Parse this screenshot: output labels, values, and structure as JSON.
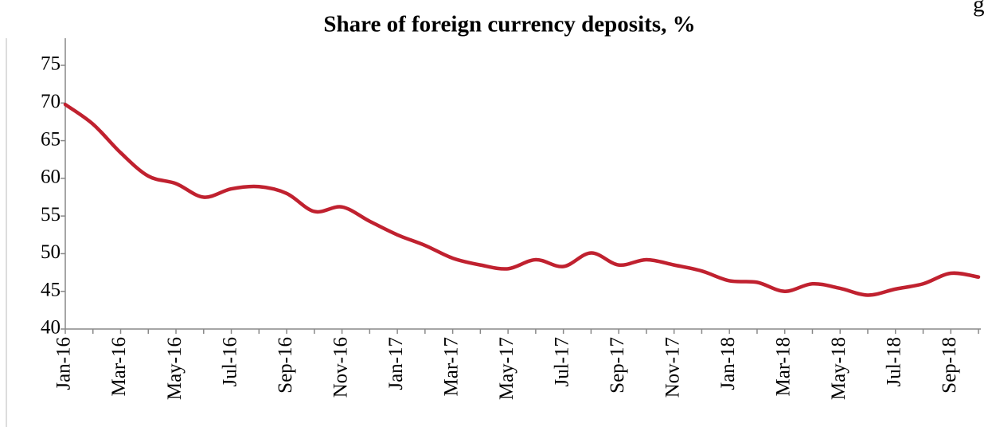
{
  "chart_data": {
    "type": "line",
    "title": "Share of foreign currency deposits, %",
    "annotation": "g",
    "categories": [
      "Jan-16",
      null,
      "Mar-16",
      null,
      "May-16",
      null,
      "Jul-16",
      null,
      "Sep-16",
      null,
      "Nov-16",
      null,
      "Jan-17",
      null,
      "Mar-17",
      null,
      "May-17",
      null,
      "Jul-17",
      null,
      "Sep-17",
      null,
      "Nov-17",
      null,
      "Jan-18",
      null,
      "Mar-18",
      null,
      "May-18",
      null,
      "Jul-18",
      null,
      "Sep-18",
      null
    ],
    "series": [
      {
        "name": "Share of foreign currency deposits",
        "color": "#c0212f",
        "values": [
          69.8,
          67.2,
          63.4,
          60.3,
          59.3,
          57.5,
          58.6,
          58.9,
          58.0,
          55.6,
          56.2,
          54.3,
          52.5,
          51.1,
          49.4,
          48.5,
          48.0,
          49.2,
          48.3,
          50.1,
          48.5,
          49.2,
          48.5,
          47.7,
          46.4,
          46.2,
          45.0,
          46.0,
          45.4,
          44.5,
          45.3,
          46.0,
          47.4,
          46.9
        ]
      }
    ],
    "ylim": [
      40,
      75
    ],
    "yticks": [
      40,
      45,
      50,
      55,
      60,
      65,
      70,
      75
    ]
  }
}
